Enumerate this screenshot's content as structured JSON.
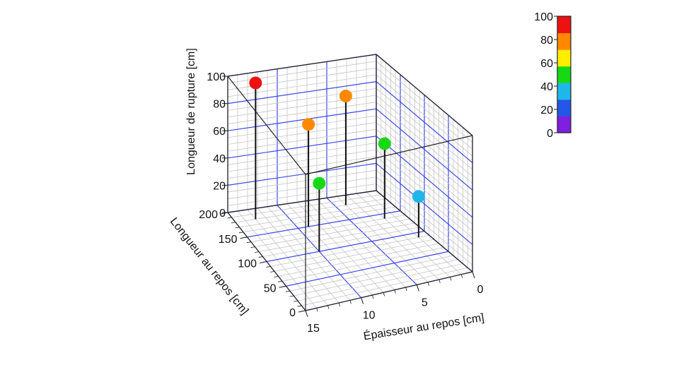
{
  "chart_data": {
    "type": "scatter3d",
    "title": "",
    "x_axis": {
      "label": "Épaisseur au repos [cm]",
      "range": [
        0,
        15
      ],
      "ticks": [
        "0",
        "5",
        "10",
        "15"
      ]
    },
    "y_axis": {
      "label": "Longueur au repos [cm]",
      "range": [
        0,
        200
      ],
      "ticks": [
        "0",
        "50",
        "100",
        "150",
        "200"
      ]
    },
    "z_axis": {
      "label": "Longueur de rupture [cm]",
      "range": [
        0,
        100
      ],
      "ticks": [
        "0",
        "20",
        "40",
        "60",
        "80",
        "100"
      ]
    },
    "points": [
      {
        "x": 13,
        "y": 180,
        "z": 100
      },
      {
        "x": 9,
        "y": 150,
        "z": 75
      },
      {
        "x": 10,
        "y": 100,
        "z": 50
      },
      {
        "x": 4,
        "y": 180,
        "z": 80
      },
      {
        "x": 2,
        "y": 140,
        "z": 55
      },
      {
        "x": 1,
        "y": 90,
        "z": 30
      }
    ],
    "color_scale": {
      "ticks": [
        "0",
        "20",
        "40",
        "60",
        "80",
        "100"
      ],
      "range": [
        0,
        100
      ],
      "colors": [
        "#7f1fe0",
        "#2456e8",
        "#1fb7ea",
        "#16d916",
        "#ffee00",
        "#ff8800",
        "#ee1111"
      ]
    },
    "grid": true,
    "legend": "colorbar right"
  }
}
